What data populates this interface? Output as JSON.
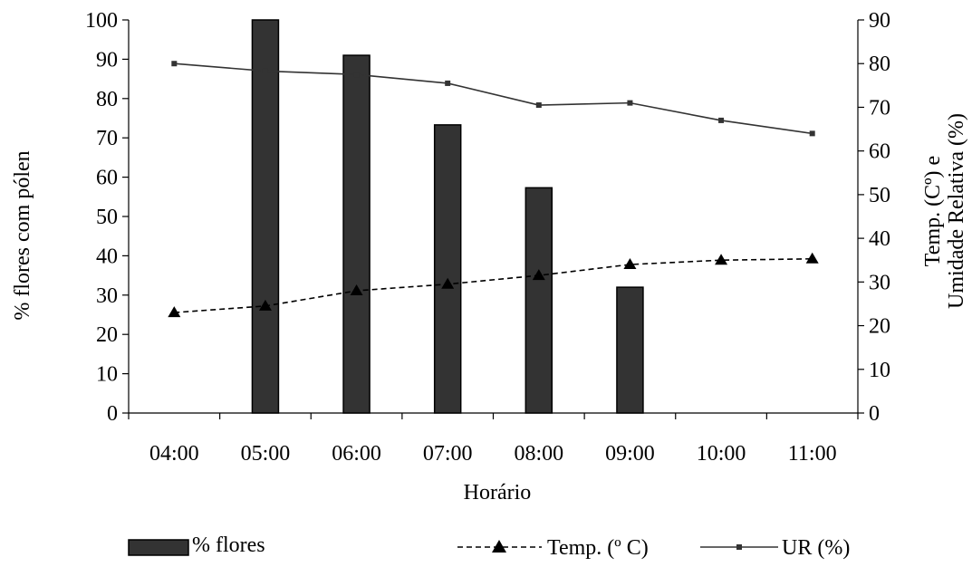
{
  "chart_data": {
    "type": "bar",
    "xlabel": "Horário",
    "ylabel_left": "% flores com pólen",
    "ylabel_right": [
      "Temp. (Cº) e",
      "Umidade Relativa (%)"
    ],
    "ylim_left": [
      0,
      100
    ],
    "yticks_left": [
      "0",
      "10",
      "20",
      "30",
      "40",
      "50",
      "60",
      "70",
      "80",
      "90",
      "100"
    ],
    "ylim_right": [
      0,
      90
    ],
    "yticks_right": [
      "0",
      "10",
      "20",
      "30",
      "40",
      "50",
      "60",
      "70",
      "80",
      "90"
    ],
    "grid": false,
    "legend_position": "bottom",
    "categories": [
      "04:00",
      "05:00",
      "06:00",
      "07:00",
      "08:00",
      "09:00",
      "10:00",
      "11:00"
    ],
    "series": [
      {
        "name": "% flores",
        "kind": "bar",
        "axis": "left",
        "color": "#333333",
        "values": [
          0,
          100,
          91,
          73.3,
          57.3,
          32,
          0,
          0
        ]
      },
      {
        "name": "Temp. (º C)",
        "kind": "line",
        "axis": "right",
        "style": "dashed",
        "marker": "triangle",
        "color": "#000000",
        "values": [
          23,
          24.5,
          28,
          29.5,
          31.5,
          34,
          35,
          35.3
        ]
      },
      {
        "name": "UR (%)",
        "kind": "line",
        "axis": "right",
        "style": "solid",
        "marker": "square",
        "color": "#333333",
        "values": [
          80,
          78.3,
          77.5,
          75.5,
          70.5,
          71,
          67,
          64
        ]
      }
    ]
  }
}
